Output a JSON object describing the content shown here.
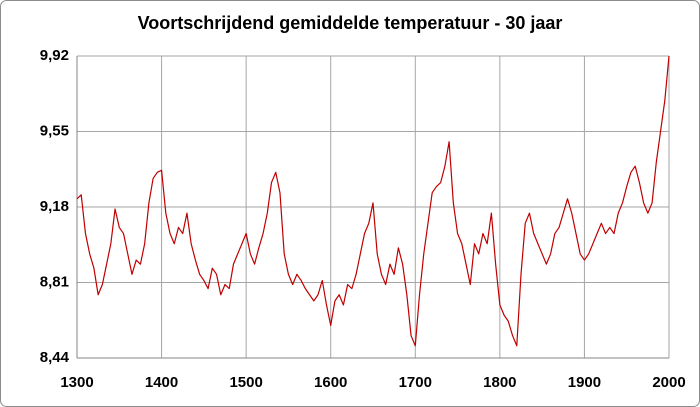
{
  "chart_data": {
    "type": "line",
    "title": "Voortschrijdend gemiddelde temperatuur - 30 jaar",
    "x": [
      1300,
      1305,
      1310,
      1315,
      1320,
      1325,
      1330,
      1335,
      1340,
      1345,
      1350,
      1355,
      1360,
      1365,
      1370,
      1375,
      1380,
      1385,
      1390,
      1395,
      1400,
      1405,
      1410,
      1415,
      1420,
      1425,
      1430,
      1435,
      1440,
      1445,
      1450,
      1455,
      1460,
      1465,
      1470,
      1475,
      1480,
      1485,
      1490,
      1495,
      1500,
      1505,
      1510,
      1515,
      1520,
      1525,
      1530,
      1535,
      1540,
      1545,
      1550,
      1555,
      1560,
      1565,
      1570,
      1575,
      1580,
      1585,
      1590,
      1595,
      1600,
      1605,
      1610,
      1615,
      1620,
      1625,
      1630,
      1635,
      1640,
      1645,
      1650,
      1655,
      1660,
      1665,
      1670,
      1675,
      1680,
      1685,
      1690,
      1695,
      1700,
      1705,
      1710,
      1715,
      1720,
      1725,
      1730,
      1735,
      1740,
      1745,
      1750,
      1755,
      1760,
      1765,
      1770,
      1775,
      1780,
      1785,
      1790,
      1795,
      1800,
      1805,
      1810,
      1815,
      1820,
      1825,
      1830,
      1835,
      1840,
      1845,
      1850,
      1855,
      1860,
      1865,
      1870,
      1875,
      1880,
      1885,
      1890,
      1895,
      1900,
      1905,
      1910,
      1915,
      1920,
      1925,
      1930,
      1935,
      1940,
      1945,
      1950,
      1955,
      1960,
      1965,
      1970,
      1975,
      1980,
      1985,
      1990,
      1995,
      2000
    ],
    "values": [
      9.22,
      9.24,
      9.05,
      8.95,
      8.88,
      8.75,
      8.8,
      8.9,
      9.0,
      9.17,
      9.08,
      9.05,
      8.95,
      8.85,
      8.92,
      8.9,
      9.0,
      9.2,
      9.32,
      9.35,
      9.36,
      9.15,
      9.05,
      9.0,
      9.08,
      9.05,
      9.15,
      9.0,
      8.92,
      8.85,
      8.82,
      8.78,
      8.88,
      8.85,
      8.75,
      8.8,
      8.78,
      8.9,
      8.95,
      9.0,
      9.05,
      8.95,
      8.9,
      8.98,
      9.05,
      9.15,
      9.3,
      9.35,
      9.25,
      8.95,
      8.85,
      8.8,
      8.85,
      8.82,
      8.78,
      8.75,
      8.72,
      8.75,
      8.82,
      8.7,
      8.6,
      8.72,
      8.75,
      8.7,
      8.8,
      8.78,
      8.85,
      8.95,
      9.05,
      9.1,
      9.2,
      8.95,
      8.85,
      8.8,
      8.9,
      8.85,
      8.98,
      8.9,
      8.75,
      8.55,
      8.5,
      8.75,
      8.95,
      9.1,
      9.25,
      9.28,
      9.3,
      9.38,
      9.5,
      9.2,
      9.05,
      9.0,
      8.9,
      8.8,
      9.0,
      8.95,
      9.05,
      9.0,
      9.15,
      8.9,
      8.7,
      8.65,
      8.62,
      8.55,
      8.5,
      8.85,
      9.1,
      9.15,
      9.05,
      9.0,
      8.95,
      8.9,
      8.95,
      9.05,
      9.08,
      9.15,
      9.22,
      9.15,
      9.05,
      8.95,
      8.92,
      8.95,
      9.0,
      9.05,
      9.1,
      9.05,
      9.08,
      9.05,
      9.15,
      9.2,
      9.28,
      9.35,
      9.38,
      9.3,
      9.2,
      9.15,
      9.2,
      9.4,
      9.55,
      9.7,
      9.92
    ],
    "color": "#c00000",
    "xlim": [
      1300,
      2000
    ],
    "xticks": [
      1300,
      1400,
      1500,
      1600,
      1700,
      1800,
      1900,
      2000
    ],
    "ylim": [
      8.44,
      9.92
    ],
    "yticks": [
      {
        "value": 8.44,
        "label": "8,44"
      },
      {
        "value": 8.81,
        "label": "8,81"
      },
      {
        "value": 9.18,
        "label": "9,18"
      },
      {
        "value": 9.55,
        "label": "9,55"
      },
      {
        "value": 9.92,
        "label": "9,92"
      }
    ],
    "grid": true
  }
}
